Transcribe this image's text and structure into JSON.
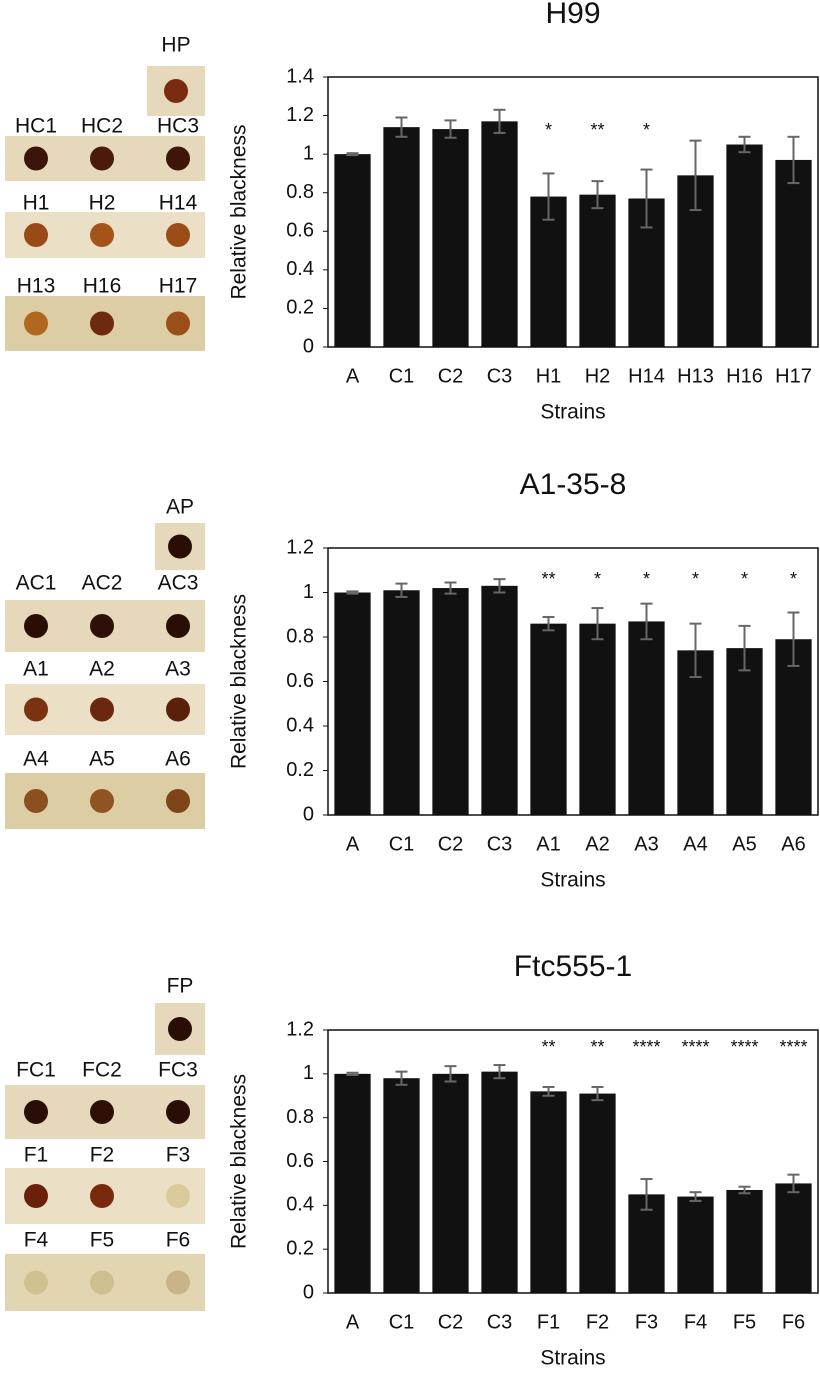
{
  "chart_data": [
    {
      "type": "bar",
      "title": "H99",
      "y_label": "Relative blackness",
      "x_label": "Strains",
      "categories": [
        "A",
        "C1",
        "C2",
        "C3",
        "H1",
        "H2",
        "H14",
        "H13",
        "H16",
        "H17"
      ],
      "values": [
        1.0,
        1.14,
        1.13,
        1.17,
        0.78,
        0.79,
        0.77,
        0.89,
        1.05,
        0.97
      ],
      "errors": [
        0.005,
        0.05,
        0.045,
        0.06,
        0.12,
        0.07,
        0.15,
        0.18,
        0.04,
        0.12
      ],
      "annotations": [
        null,
        null,
        null,
        null,
        "*",
        "**",
        "*",
        null,
        null,
        null
      ],
      "color": "#111111",
      "error_color": "#666666",
      "ylim": [
        0,
        1.4
      ],
      "yticks": [
        0,
        0.2,
        0.4,
        0.6,
        0.8,
        1,
        1.2,
        1.4
      ]
    },
    {
      "type": "bar",
      "title": "A1-35-8",
      "y_label": "Relative blackness",
      "x_label": "Strains",
      "categories": [
        "A",
        "C1",
        "C2",
        "C3",
        "A1",
        "A2",
        "A3",
        "A4",
        "A5",
        "A6"
      ],
      "values": [
        1.0,
        1.01,
        1.02,
        1.03,
        0.86,
        0.86,
        0.87,
        0.74,
        0.75,
        0.79
      ],
      "errors": [
        0.005,
        0.03,
        0.025,
        0.03,
        0.03,
        0.07,
        0.08,
        0.12,
        0.1,
        0.12
      ],
      "annotations": [
        null,
        null,
        null,
        null,
        "**",
        "*",
        "*",
        "*",
        "*",
        "*"
      ],
      "color": "#111111",
      "error_color": "#666666",
      "ylim": [
        0,
        1.2
      ],
      "yticks": [
        0,
        0.2,
        0.4,
        0.6,
        0.8,
        1,
        1.2
      ]
    },
    {
      "type": "bar",
      "title": "Ftc555-1",
      "y_label": "Relative blackness",
      "x_label": "Strains",
      "categories": [
        "A",
        "C1",
        "C2",
        "C3",
        "F1",
        "F2",
        "F3",
        "F4",
        "F5",
        "F6"
      ],
      "values": [
        1.0,
        0.98,
        1.0,
        1.01,
        0.92,
        0.91,
        0.45,
        0.44,
        0.47,
        0.5
      ],
      "errors": [
        0.005,
        0.03,
        0.035,
        0.03,
        0.02,
        0.03,
        0.07,
        0.02,
        0.015,
        0.04
      ],
      "annotations": [
        null,
        null,
        null,
        null,
        "**",
        "**",
        "****",
        "****",
        "****",
        "****"
      ],
      "color": "#111111",
      "error_color": "#666666",
      "ylim": [
        0,
        1.2
      ],
      "yticks": [
        0,
        0.2,
        0.4,
        0.6,
        0.8,
        1,
        1.2
      ]
    }
  ],
  "plates": [
    {
      "pos_label": "HP",
      "pos_color": "#7a2c10",
      "rows": [
        {
          "labels": [
            "HC1",
            "HC2",
            "HC3"
          ],
          "colors": [
            "#3a1408",
            "#4a1a0a",
            "#3e1608"
          ],
          "background": "#e6d9bb"
        },
        {
          "labels": [
            "H1",
            "H2",
            "H14"
          ],
          "colors": [
            "#9a4a14",
            "#a45418",
            "#9c4c16"
          ],
          "background": "#ebe0c6"
        },
        {
          "labels": [
            "H13",
            "H16",
            "H17"
          ],
          "colors": [
            "#b0681e",
            "#6e2a0e",
            "#9a4e18"
          ],
          "background": "#dccda4"
        }
      ]
    },
    {
      "pos_label": "AP",
      "pos_color": "#2a0e06",
      "rows": [
        {
          "labels": [
            "AC1",
            "AC2",
            "AC3"
          ],
          "colors": [
            "#2a0e06",
            "#2e1008",
            "#2a0e06"
          ],
          "background": "#e6d9bb"
        },
        {
          "labels": [
            "A1",
            "A2",
            "A3"
          ],
          "colors": [
            "#7a3210",
            "#6a280e",
            "#5a200a"
          ],
          "background": "#ebe0c6"
        },
        {
          "labels": [
            "A4",
            "A5",
            "A6"
          ],
          "colors": [
            "#8a5020",
            "#8e5422",
            "#7e4418"
          ],
          "background": "#dccda4"
        }
      ]
    },
    {
      "pos_label": "FP",
      "pos_color": "#2a0e06",
      "rows": [
        {
          "labels": [
            "FC1",
            "FC2",
            "FC3"
          ],
          "colors": [
            "#2a0e06",
            "#2e1008",
            "#2a0e06"
          ],
          "background": "#e6d9bb"
        },
        {
          "labels": [
            "F1",
            "F2",
            "F3"
          ],
          "colors": [
            "#6a200a",
            "#7a2a0c",
            "#dccb9a"
          ],
          "background": "#ebe0c6"
        },
        {
          "labels": [
            "F4",
            "F5",
            "F6"
          ],
          "colors": [
            "#d2c190",
            "#d0bf8e",
            "#c8b488"
          ],
          "background": "#e2d6b2"
        }
      ]
    }
  ]
}
